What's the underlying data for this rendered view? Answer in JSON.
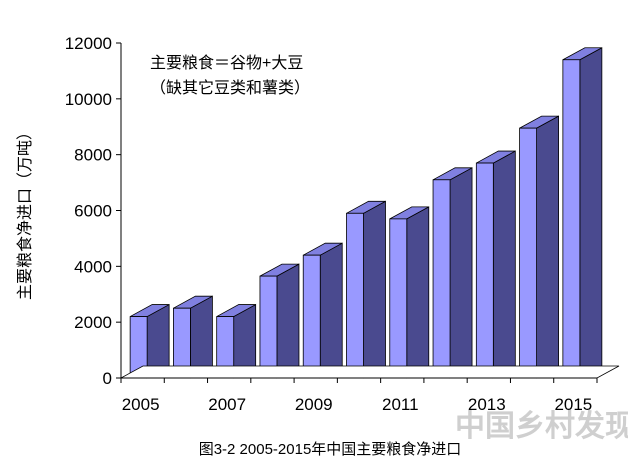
{
  "chart_data": {
    "type": "bar",
    "style": "3d-column",
    "categories": [
      "2005",
      "2006",
      "2007",
      "2008",
      "2009",
      "2010",
      "2011",
      "2012",
      "2013",
      "2014",
      "2015"
    ],
    "x_tick_labels": [
      "2005",
      "2007",
      "2009",
      "2011",
      "2013",
      "2015"
    ],
    "values": [
      2200,
      2500,
      2200,
      3650,
      4400,
      5900,
      5700,
      7100,
      7700,
      8950,
      11400
    ],
    "ylabel": "主要粮食净进口（万吨）",
    "ylim": [
      0,
      12000
    ],
    "y_ticks": [
      "0",
      "2000",
      "4000",
      "6000",
      "8000",
      "10000",
      "12000"
    ],
    "annotation_line1": "主要粮食＝谷物+大豆",
    "annotation_line2": "（缺其它豆类和薯类）",
    "caption": "图3-2   2005-2015年中国主要粮食净进口",
    "grid": false,
    "legend": "none",
    "colors": {
      "front": "#9999ff",
      "top": "#8080e0",
      "side": "#4a4a8f",
      "edge": "#000000"
    }
  },
  "watermark": "中国乡村发现网"
}
